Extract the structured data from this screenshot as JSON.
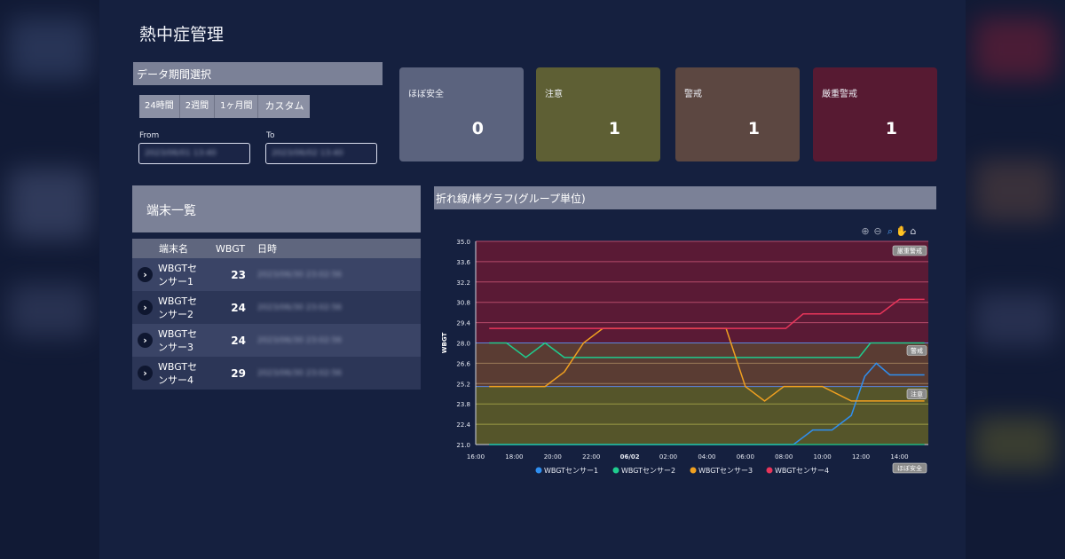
{
  "page": {
    "title": "熱中症管理"
  },
  "period": {
    "title": "データ期間選択",
    "buttons": [
      "24時間",
      "2週間",
      "1ヶ月間",
      "カスタム"
    ],
    "from_label": "From",
    "to_label": "To",
    "from_value": "2023/06/01 13:40",
    "to_value": "2023/06/02 13:40"
  },
  "status_cards": [
    {
      "label": "ほぼ安全",
      "count": "0",
      "color": "#5b637e"
    },
    {
      "label": "注意",
      "count": "1",
      "color": "#5e5f34"
    },
    {
      "label": "警戒",
      "count": "1",
      "color": "#5c4741"
    },
    {
      "label": "厳重警戒",
      "count": "1",
      "color": "#571a32"
    }
  ],
  "device_list": {
    "title": "端末一覧",
    "columns": [
      "端末名",
      "WBGT",
      "日時"
    ],
    "rows": [
      {
        "name_line1": "WBGTセ",
        "name_line2": "ンサー1",
        "wbgt": "23",
        "datetime": "2023/06/30 23:02:56"
      },
      {
        "name_line1": "WBGTセ",
        "name_line2": "ンサー2",
        "wbgt": "24",
        "datetime": "2023/06/30 23:02:56"
      },
      {
        "name_line1": "WBGTセ",
        "name_line2": "ンサー3",
        "wbgt": "24",
        "datetime": "2023/06/30 23:02:56"
      },
      {
        "name_line1": "WBGTセ",
        "name_line2": "ンサー4",
        "wbgt": "29",
        "datetime": "2023/06/30 23:02:56"
      }
    ]
  },
  "chart_panel": {
    "title": "折れ線/棒グラフ(グループ単位)"
  },
  "toolbar_icons": [
    "zoom-in-icon",
    "zoom-out-icon",
    "magnify-icon",
    "pan-hand-icon",
    "home-icon"
  ],
  "chart_data": {
    "type": "line",
    "ylabel": "WBGT",
    "ylim": [
      21.0,
      35.0
    ],
    "yticks": [
      "35.0",
      "33.6",
      "32.2",
      "30.8",
      "29.4",
      "28.0",
      "26.6",
      "25.2",
      "23.8",
      "22.4",
      "21.0"
    ],
    "x_tick_labels": [
      "16:00",
      "18:00",
      "20:00",
      "22:00",
      "06/02",
      "02:00",
      "04:00",
      "06:00",
      "08:00",
      "10:00",
      "12:00",
      "14:00"
    ],
    "x_tick_hours": [
      0,
      2,
      4,
      6,
      8,
      10,
      12,
      14,
      16,
      18,
      20,
      22
    ],
    "xlim_hours": [
      0,
      23.5
    ],
    "bands": [
      {
        "label": "厳重警戒",
        "from": 28.0,
        "to": 35.0,
        "color": "#5a1a35"
      },
      {
        "label": "警戒",
        "from": 25.0,
        "to": 28.0,
        "color": "#5a3c33"
      },
      {
        "label": "注意",
        "from": 21.0,
        "to": 25.0,
        "color": "#55552a"
      }
    ],
    "band_label_bottom": "ほぼ安全",
    "series": [
      {
        "name": "WBGTセンサー1",
        "color": "#2f8ff0",
        "x": [
          0.7,
          16.5,
          17.5,
          18.5,
          19.5,
          20.2,
          20.8,
          21.5,
          22.4,
          23.3
        ],
        "y": [
          21.0,
          21.0,
          22.0,
          22.0,
          23.0,
          25.7,
          26.6,
          25.8,
          25.8,
          25.8
        ]
      },
      {
        "name": "WBGTセンサー2",
        "color": "#1fcc8e",
        "x": [
          0.7,
          1.6,
          2.6,
          3.6,
          4.6,
          5.0,
          18.0,
          19.0,
          19.9,
          20.5,
          23.3
        ],
        "y": [
          28.0,
          28.0,
          27.0,
          28.0,
          27.0,
          27.0,
          27.0,
          27.0,
          27.0,
          28.0,
          28.0
        ],
        "tail_x": [
          0.7,
          23.3
        ],
        "tail_y": [
          21.0,
          21.0
        ]
      },
      {
        "name": "WBGTセンサー3",
        "color": "#f0a020",
        "x": [
          0.7,
          3.6,
          4.6,
          5.6,
          6.6,
          13.0,
          14.0,
          15.0,
          16.0,
          18.0,
          19.5,
          23.3
        ],
        "y": [
          25.0,
          25.0,
          26.0,
          28.0,
          29.0,
          29.0,
          25.0,
          24.0,
          25.0,
          25.0,
          24.0,
          24.0
        ]
      },
      {
        "name": "WBGTセンサー4",
        "color": "#e8355a",
        "x": [
          0.7,
          16.1,
          17.0,
          21.0,
          22.0,
          23.3
        ],
        "y": [
          29.0,
          29.0,
          30.0,
          30.0,
          31.0,
          31.0
        ]
      }
    ],
    "legend_position": "bottom"
  }
}
